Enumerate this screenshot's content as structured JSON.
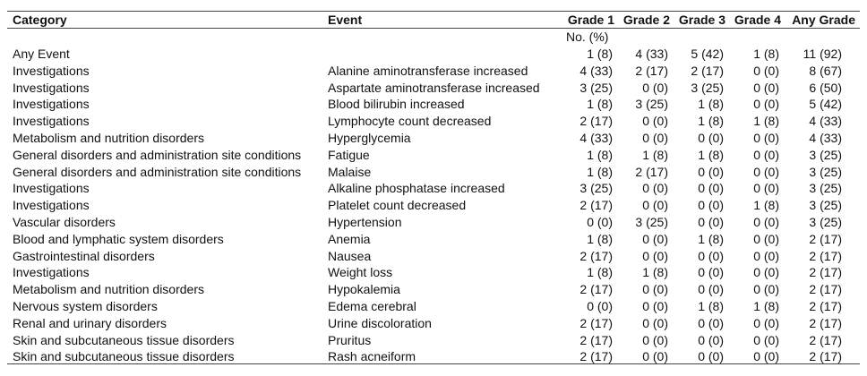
{
  "table": {
    "header": [
      "Category",
      "Event",
      "Grade 1",
      "Grade 2",
      "Grade 3",
      "Grade 4",
      "Any Grade"
    ],
    "subheader": "No. (%)",
    "rows": [
      [
        "Any Event",
        null,
        "1 (8)",
        "4 (33)",
        "5 (42)",
        "1 (8)",
        "11 (92)"
      ],
      [
        "Investigations",
        "Alanine aminotransferase increased",
        "4 (33)",
        "2 (17)",
        "2 (17)",
        "0 (0)",
        "8 (67)"
      ],
      [
        "Investigations",
        "Aspartate aminotransferase increased",
        "3 (25)",
        "0 (0)",
        "3 (25)",
        "0 (0)",
        "6 (50)"
      ],
      [
        "Investigations",
        "Blood bilirubin increased",
        "1 (8)",
        "3 (25)",
        "1 (8)",
        "0 (0)",
        "5 (42)"
      ],
      [
        "Investigations",
        "Lymphocyte count decreased",
        "2 (17)",
        "0 (0)",
        "1 (8)",
        "1 (8)",
        "4 (33)"
      ],
      [
        "Metabolism and nutrition disorders",
        "Hyperglycemia",
        "4 (33)",
        "0 (0)",
        "0 (0)",
        "0 (0)",
        "4 (33)"
      ],
      [
        "General disorders and administration site conditions",
        "Fatigue",
        "1 (8)",
        "1 (8)",
        "1 (8)",
        "0 (0)",
        "3 (25)"
      ],
      [
        "General disorders and administration site conditions",
        "Malaise",
        "1 (8)",
        "2 (17)",
        "0 (0)",
        "0 (0)",
        "3 (25)"
      ],
      [
        "Investigations",
        "Alkaline phosphatase increased",
        "3 (25)",
        "0 (0)",
        "0 (0)",
        "0 (0)",
        "3 (25)"
      ],
      [
        "Investigations",
        "Platelet count decreased",
        "2 (17)",
        "0 (0)",
        "0 (0)",
        "1 (8)",
        "3 (25)"
      ],
      [
        "Vascular disorders",
        "Hypertension",
        "0 (0)",
        "3 (25)",
        "0 (0)",
        "0 (0)",
        "3 (25)"
      ],
      [
        "Blood and lymphatic system disorders",
        "Anemia",
        "1 (8)",
        "0 (0)",
        "1 (8)",
        "0 (0)",
        "2 (17)"
      ],
      [
        "Gastrointestinal disorders",
        "Nausea",
        "2 (17)",
        "0 (0)",
        "0 (0)",
        "0 (0)",
        "2 (17)"
      ],
      [
        "Investigations",
        "Weight loss",
        "1 (8)",
        "1 (8)",
        "0 (0)",
        "0 (0)",
        "2 (17)"
      ],
      [
        "Metabolism and nutrition disorders",
        "Hypokalemia",
        "2 (17)",
        "0 (0)",
        "0 (0)",
        "0 (0)",
        "2 (17)"
      ],
      [
        "Nervous system disorders",
        "Edema cerebral",
        "0 (0)",
        "0 (0)",
        "1 (8)",
        "1 (8)",
        "2 (17)"
      ],
      [
        "Renal and urinary disorders",
        "Urine discoloration",
        "2 (17)",
        "0 (0)",
        "0 (0)",
        "0 (0)",
        "2 (17)"
      ],
      [
        "Skin and subcutaneous tissue disorders",
        "Pruritus",
        "2 (17)",
        "0 (0)",
        "0 (0)",
        "0 (0)",
        "2 (17)"
      ],
      [
        "Skin and subcutaneous tissue disorders",
        "Rash acneiform",
        "2 (17)",
        "0 (0)",
        "0 (0)",
        "0 (0)",
        "2 (17)"
      ]
    ]
  }
}
